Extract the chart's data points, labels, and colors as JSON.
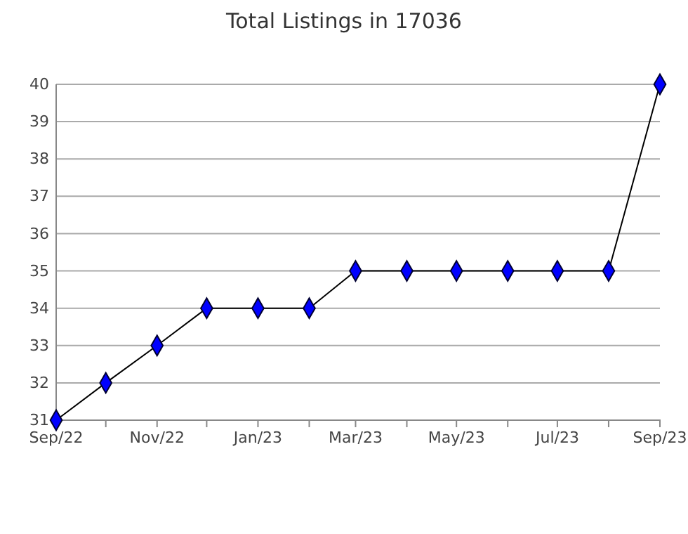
{
  "chart_data": {
    "type": "line",
    "title": "Total Listings in 17036",
    "x": [
      "2022-09",
      "2022-10",
      "2022-11",
      "2022-12",
      "2023-01",
      "2023-02",
      "2023-03",
      "2023-04",
      "2023-05",
      "2023-06",
      "2023-07",
      "2023-08",
      "2023-09"
    ],
    "series": [
      {
        "color": "#0000ff",
        "values": [
          31,
          32,
          33,
          34,
          34,
          34,
          35,
          35,
          35,
          35,
          35,
          35,
          40
        ]
      }
    ],
    "xlim": [
      "2022-09",
      "2023-09"
    ],
    "xticks": [
      {
        "value": "2022-09",
        "label": "Sep/22"
      },
      {
        "value": "2022-10",
        "label": null
      },
      {
        "value": "2022-11",
        "label": "Nov/22"
      },
      {
        "value": "2022-12",
        "label": null
      },
      {
        "value": "2023-01",
        "label": "Jan/23"
      },
      {
        "value": "2023-02",
        "label": null
      },
      {
        "value": "2023-03",
        "label": "Mar/23"
      },
      {
        "value": "2023-04",
        "label": null
      },
      {
        "value": "2023-05",
        "label": "May/23"
      },
      {
        "value": "2023-06",
        "label": null
      },
      {
        "value": "2023-07",
        "label": "Jul/23"
      },
      {
        "value": "2023-08",
        "label": null
      },
      {
        "value": "2023-09",
        "label": "Sep/23"
      }
    ],
    "ylim": [
      31,
      40
    ],
    "yticks": [
      31,
      32,
      33,
      34,
      35,
      36,
      37,
      38,
      39,
      40
    ],
    "grid": "y",
    "marker": "diamond",
    "line_style": "solid",
    "legend": false
  }
}
